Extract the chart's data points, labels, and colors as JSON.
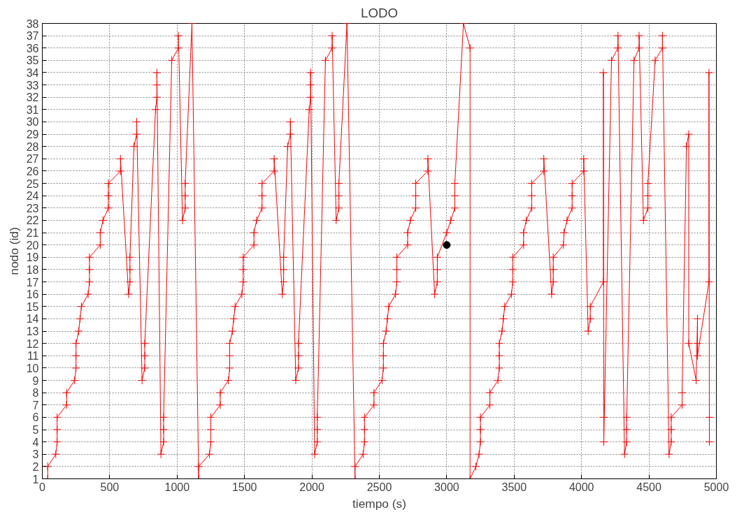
{
  "chart_data": {
    "type": "line",
    "title": "LODO",
    "xlabel": "tiempo (s)",
    "ylabel": "nodo (id)",
    "xlim": [
      0,
      5000
    ],
    "ylim": [
      1,
      38
    ],
    "xticks": [
      0,
      500,
      1000,
      1500,
      2000,
      2500,
      3000,
      3500,
      4000,
      4500,
      5000
    ],
    "yticks": [
      1,
      2,
      3,
      4,
      5,
      6,
      7,
      8,
      9,
      10,
      11,
      12,
      13,
      14,
      15,
      16,
      17,
      18,
      19,
      20,
      21,
      22,
      23,
      24,
      25,
      26,
      27,
      28,
      29,
      30,
      31,
      32,
      33,
      34,
      35,
      36,
      37,
      38
    ],
    "grid": true,
    "marker": "cross",
    "line_style": "solid",
    "series": [
      {
        "color": "#ff0000",
        "x": [
          40,
          40,
          100,
          110,
          110,
          110,
          180,
          180,
          240,
          250,
          250,
          250,
          270,
          280,
          290,
          340,
          350,
          350,
          350,
          430,
          430,
          450,
          490,
          490,
          490,
          580,
          580,
          640,
          650,
          650,
          650,
          680,
          700,
          700,
          740,
          760,
          760,
          760,
          840,
          850,
          850,
          850,
          880,
          900,
          900,
          900,
          960,
          1010,
          1010,
          1040,
          1060,
          1060,
          1060,
          1110,
          1160,
          1160,
          1240,
          1250,
          1250,
          1250,
          1320,
          1320,
          1380,
          1390,
          1390,
          1390,
          1410,
          1420,
          1430,
          1480,
          1490,
          1490,
          1490,
          1570,
          1570,
          1590,
          1630,
          1630,
          1630,
          1720,
          1720,
          1780,
          1790,
          1790,
          1790,
          1820,
          1840,
          1840,
          1880,
          1900,
          1900,
          1900,
          1980,
          1990,
          1990,
          1990,
          2020,
          2040,
          2040,
          2040,
          2100,
          2150,
          2150,
          2180,
          2200,
          2200,
          2200,
          2260,
          2320,
          2320,
          2380,
          2390,
          2390,
          2390,
          2460,
          2460,
          2520,
          2530,
          2530,
          2530,
          2550,
          2560,
          2570,
          2620,
          2630,
          2630,
          2630,
          2710,
          2710,
          2730,
          2770,
          2770,
          2770,
          2860,
          2860,
          2910,
          2930,
          2930,
          2930,
          3000,
          3030,
          3060,
          3060,
          3060,
          3124,
          3173,
          3173,
          3216,
          3240,
          3250,
          3250,
          3250,
          3320,
          3320,
          3380,
          3390,
          3390,
          3390,
          3410,
          3420,
          3430,
          3480,
          3490,
          3490,
          3490,
          3570,
          3570,
          3590,
          3630,
          3630,
          3630,
          3720,
          3720,
          3778,
          3790,
          3790,
          3790,
          3865,
          3870,
          3892,
          3930,
          3930,
          3930,
          4016,
          4016,
          4049,
          4065,
          4065,
          4162,
          4162,
          4165,
          4165,
          4222,
          4270,
          4270,
          4319,
          4335,
          4335,
          4335,
          4389,
          4427,
          4427,
          4459,
          4492,
          4492,
          4492,
          4546,
          4600,
          4600,
          4649,
          4665,
          4665,
          4665,
          4746,
          4746,
          4778,
          4795,
          4795,
          4850,
          4860,
          4860,
          4860,
          4945,
          4945,
          4948,
          4948
        ],
        "values": [
          1,
          2,
          3,
          4,
          5,
          6,
          7,
          8,
          9,
          10,
          11,
          12,
          13,
          14,
          15,
          16,
          17,
          18,
          19,
          20,
          21,
          22,
          23,
          24,
          25,
          26,
          27,
          16,
          17,
          18,
          19,
          28,
          29,
          30,
          9,
          10,
          11,
          12,
          31,
          32,
          33,
          34,
          3,
          4,
          5,
          6,
          35,
          36,
          37,
          22,
          23,
          24,
          25,
          38,
          1,
          2,
          3,
          4,
          5,
          6,
          7,
          8,
          9,
          10,
          11,
          12,
          13,
          14,
          15,
          16,
          17,
          18,
          19,
          20,
          21,
          22,
          23,
          24,
          25,
          26,
          27,
          16,
          17,
          18,
          19,
          28,
          29,
          30,
          9,
          10,
          11,
          12,
          31,
          32,
          33,
          34,
          3,
          4,
          5,
          6,
          35,
          36,
          37,
          22,
          23,
          24,
          25,
          38,
          1,
          2,
          3,
          4,
          5,
          6,
          7,
          8,
          9,
          10,
          11,
          12,
          13,
          14,
          15,
          16,
          17,
          18,
          19,
          20,
          21,
          22,
          23,
          24,
          25,
          26,
          27,
          16,
          17,
          18,
          19,
          21,
          22,
          23,
          24,
          25,
          38,
          36,
          1,
          2,
          3,
          4,
          5,
          6,
          7,
          8,
          9,
          10,
          11,
          12,
          13,
          14,
          15,
          16,
          17,
          18,
          19,
          20,
          21,
          22,
          23,
          24,
          25,
          26,
          27,
          16,
          17,
          18,
          19,
          20,
          21,
          22,
          23,
          24,
          25,
          26,
          27,
          13,
          14,
          15,
          17,
          34,
          6,
          4,
          35,
          36,
          37,
          3,
          4,
          5,
          6,
          35,
          36,
          37,
          22,
          23,
          24,
          25,
          35,
          36,
          37,
          3,
          4,
          5,
          6,
          7,
          8,
          28,
          29,
          12,
          9,
          14,
          12,
          11,
          17,
          34,
          6,
          4
        ]
      },
      {
        "type": "scatter",
        "color": "#000000",
        "marker": "circle",
        "x": [
          3000
        ],
        "values": [
          20
        ]
      }
    ]
  }
}
